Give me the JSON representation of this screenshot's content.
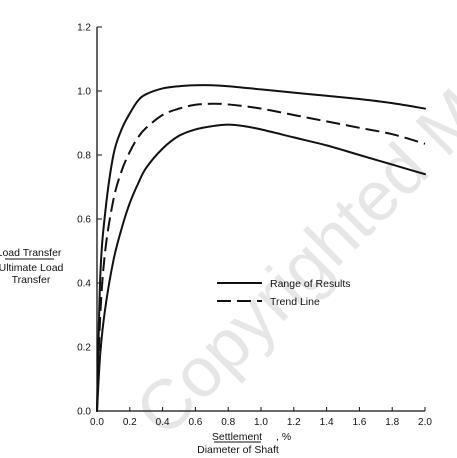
{
  "chart_data": {
    "type": "line",
    "xlabel_numerator": "Settlement",
    "xlabel_unit": ", %",
    "xlabel_denominator": "Diameter of Shaft",
    "ylabel_numerator": "Load Transfer",
    "ylabel_denominator_line1": "Ultimate Load",
    "ylabel_denominator_line2": "Transfer",
    "xlim": [
      0.0,
      2.0
    ],
    "ylim": [
      0.0,
      1.2
    ],
    "x_ticks": [
      "0.0",
      "0.2",
      "0.4",
      "0.6",
      "0.8",
      "1.0",
      "1.2",
      "1.4",
      "1.6",
      "1.8",
      "2.0"
    ],
    "y_ticks": [
      "0.0",
      "0.2",
      "0.4",
      "0.6",
      "0.8",
      "1.0",
      "1.2"
    ],
    "grid": false,
    "legend_position": "center-right",
    "watermark": "Copyrighted Material",
    "series": [
      {
        "name": "Range of Results",
        "style": "solid",
        "color": "#111111",
        "x": [
          0.0,
          0.02,
          0.05,
          0.1,
          0.15,
          0.2,
          0.25,
          0.3,
          0.4,
          0.5,
          0.6,
          0.7,
          0.8,
          1.0,
          1.2,
          1.4,
          1.6,
          1.8,
          2.0
        ],
        "y": [
          0.0,
          0.42,
          0.62,
          0.8,
          0.88,
          0.93,
          0.97,
          0.99,
          1.008,
          1.015,
          1.018,
          1.018,
          1.015,
          1.005,
          0.995,
          0.985,
          0.975,
          0.962,
          0.945
        ]
      },
      {
        "name": "Trend Line",
        "style": "dashed",
        "color": "#111111",
        "x": [
          0.0,
          0.02,
          0.05,
          0.1,
          0.15,
          0.2,
          0.25,
          0.3,
          0.4,
          0.5,
          0.6,
          0.7,
          0.8,
          1.0,
          1.2,
          1.4,
          1.6,
          1.8,
          2.0
        ],
        "y": [
          0.0,
          0.3,
          0.5,
          0.66,
          0.75,
          0.81,
          0.855,
          0.885,
          0.925,
          0.945,
          0.957,
          0.96,
          0.958,
          0.945,
          0.925,
          0.905,
          0.885,
          0.865,
          0.835
        ]
      },
      {
        "name": "",
        "style": "solid",
        "color": "#111111",
        "x": [
          0.0,
          0.02,
          0.05,
          0.1,
          0.15,
          0.2,
          0.25,
          0.3,
          0.4,
          0.5,
          0.6,
          0.7,
          0.8,
          0.9,
          1.0,
          1.2,
          1.4,
          1.6,
          1.8,
          2.0
        ],
        "y": [
          0.0,
          0.18,
          0.32,
          0.47,
          0.57,
          0.65,
          0.71,
          0.76,
          0.82,
          0.86,
          0.88,
          0.89,
          0.895,
          0.89,
          0.88,
          0.855,
          0.83,
          0.8,
          0.77,
          0.74
        ]
      }
    ]
  }
}
